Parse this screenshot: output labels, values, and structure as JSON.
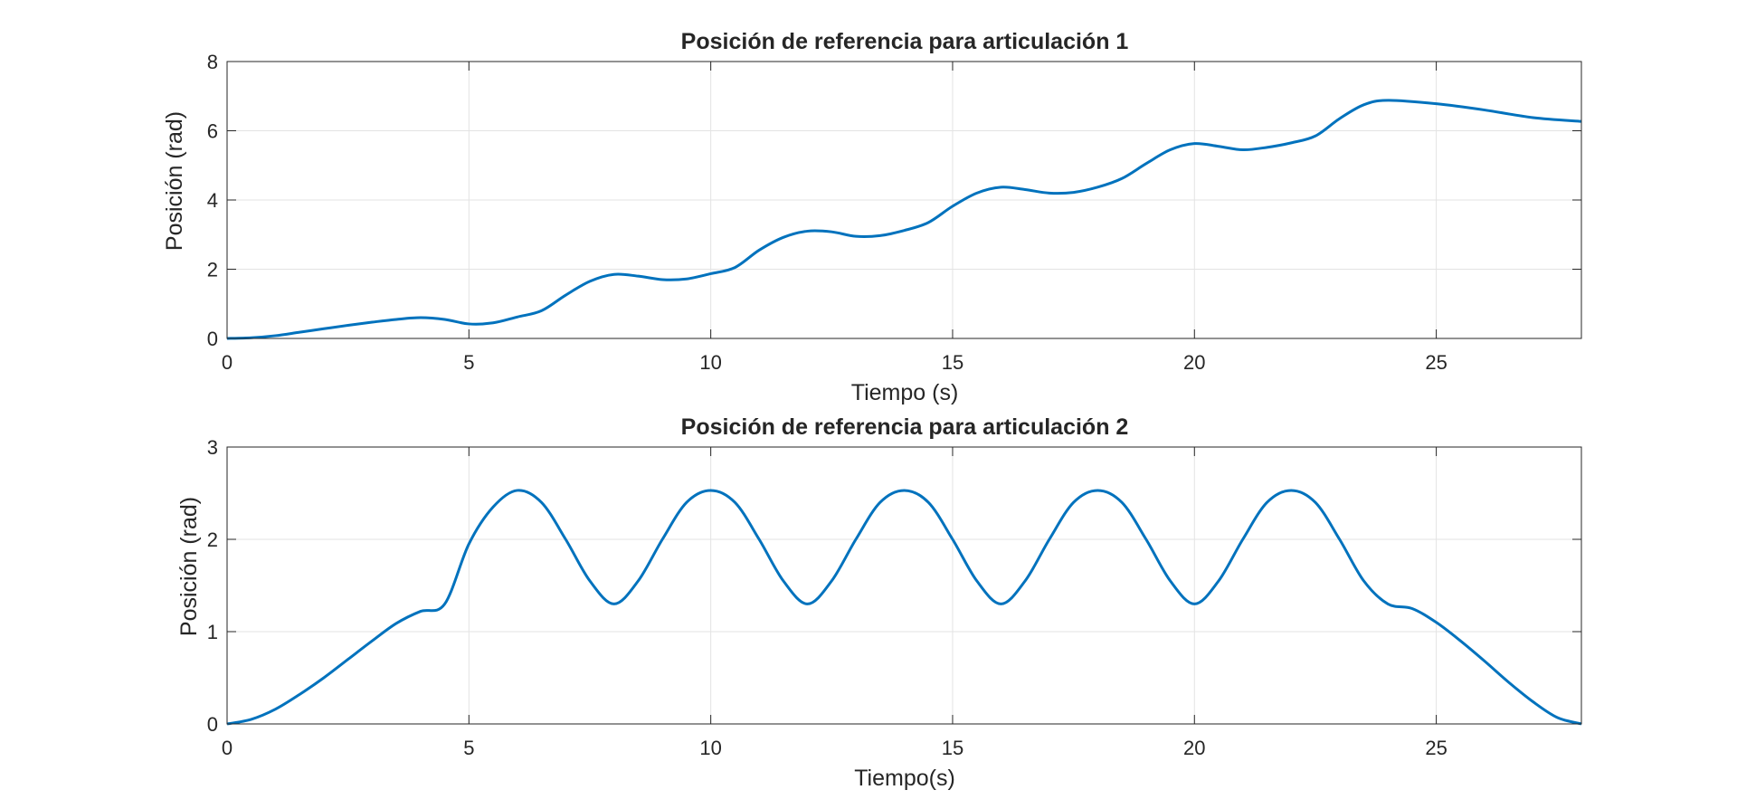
{
  "colors": {
    "line": "#0072BD",
    "grid": "#e3e3e3",
    "axis": "#262626"
  },
  "chart_data": [
    {
      "type": "line",
      "title": "Posición de referencia para articulación 1",
      "xlabel": "Tiempo (s)",
      "ylabel": "Posición (rad)",
      "xlim": [
        0,
        28
      ],
      "ylim": [
        0,
        8
      ],
      "xticks": [
        0,
        5,
        10,
        15,
        20,
        25
      ],
      "yticks": [
        0,
        2,
        4,
        6,
        8
      ],
      "grid": true,
      "series": [
        {
          "x": [
            0,
            0.5,
            1,
            1.5,
            2,
            2.5,
            3,
            3.5,
            4,
            4.5,
            5,
            5.5,
            6,
            6.5,
            7,
            7.5,
            8,
            8.5,
            9,
            9.5,
            10,
            10.5,
            11,
            11.5,
            12,
            12.5,
            13,
            13.5,
            14,
            14.5,
            15,
            15.5,
            16,
            16.5,
            17,
            17.5,
            18,
            18.5,
            19,
            19.5,
            20,
            20.5,
            21,
            21.5,
            22,
            22.5,
            23,
            23.5,
            24,
            25,
            26,
            27,
            28
          ],
          "y": [
            0,
            0.02,
            0.08,
            0.18,
            0.28,
            0.38,
            0.47,
            0.55,
            0.6,
            0.55,
            0.42,
            0.45,
            0.62,
            0.8,
            1.25,
            1.65,
            1.85,
            1.8,
            1.7,
            1.72,
            1.87,
            2.05,
            2.55,
            2.92,
            3.1,
            3.08,
            2.95,
            2.97,
            3.12,
            3.35,
            3.82,
            4.2,
            4.37,
            4.3,
            4.2,
            4.22,
            4.37,
            4.62,
            5.05,
            5.45,
            5.63,
            5.55,
            5.45,
            5.52,
            5.65,
            5.85,
            6.35,
            6.75,
            6.88,
            6.78,
            6.6,
            6.38,
            6.27
          ]
        }
      ]
    },
    {
      "type": "line",
      "title": "Posición de referencia para articulación 2",
      "xlabel": "Tiempo(s)",
      "ylabel": "Posición (rad)",
      "xlim": [
        0,
        28
      ],
      "ylim": [
        0,
        3
      ],
      "xticks": [
        0,
        5,
        10,
        15,
        20,
        25
      ],
      "yticks": [
        0,
        1,
        2,
        3
      ],
      "grid": true,
      "series": [
        {
          "x": [
            0,
            0.5,
            1,
            1.5,
            2,
            2.5,
            3,
            3.5,
            4,
            4.5,
            5,
            5.5,
            6,
            6.5,
            7,
            7.5,
            8,
            8.5,
            9,
            9.5,
            10,
            10.5,
            11,
            11.5,
            12,
            12.5,
            13,
            13.5,
            14,
            14.5,
            15,
            15.5,
            16,
            16.5,
            17,
            17.5,
            18,
            18.5,
            19,
            19.5,
            20,
            20.5,
            21,
            21.5,
            22,
            22.5,
            23,
            23.5,
            24,
            24.5,
            25,
            25.5,
            26,
            26.5,
            27,
            27.5,
            28
          ],
          "y": [
            0,
            0.05,
            0.16,
            0.32,
            0.5,
            0.7,
            0.9,
            1.09,
            1.22,
            1.3,
            1.95,
            2.35,
            2.53,
            2.4,
            2.0,
            1.55,
            1.3,
            1.55,
            2.0,
            2.4,
            2.53,
            2.4,
            2.0,
            1.55,
            1.3,
            1.55,
            2.0,
            2.4,
            2.53,
            2.4,
            2.0,
            1.55,
            1.3,
            1.55,
            2.0,
            2.4,
            2.53,
            2.4,
            2.0,
            1.55,
            1.3,
            1.55,
            2.0,
            2.4,
            2.53,
            2.4,
            2.0,
            1.55,
            1.3,
            1.25,
            1.1,
            0.9,
            0.68,
            0.45,
            0.24,
            0.07,
            0
          ]
        }
      ]
    }
  ]
}
